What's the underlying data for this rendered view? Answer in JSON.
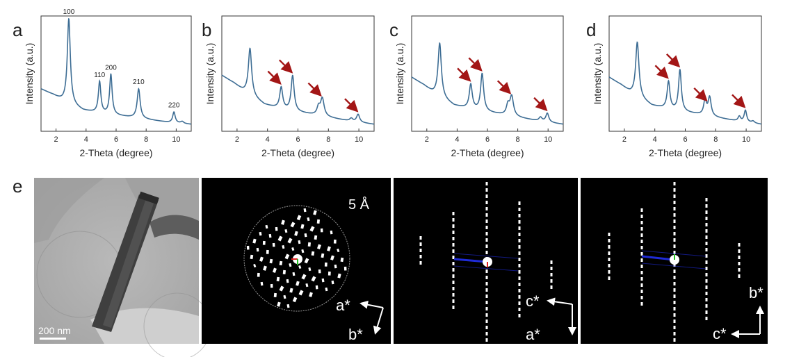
{
  "panel_labels": {
    "a": "a",
    "b": "b",
    "c": "c",
    "d": "d",
    "e": "e"
  },
  "chart_data": [
    {
      "type": "line",
      "panel": "a",
      "xlabel": "2-Theta (degree)",
      "ylabel": "Intensity (a.u.)",
      "xlim": [
        1,
        11
      ],
      "x_ticks": [
        "2",
        "4",
        "6",
        "8",
        "10"
      ],
      "line_color": "#3d6d94",
      "baseline": [
        [
          1,
          0.36
        ],
        [
          1.8,
          0.3
        ],
        [
          2.4,
          0.24
        ],
        [
          3.8,
          0.14
        ],
        [
          5,
          0.11
        ],
        [
          6.5,
          0.08
        ],
        [
          8,
          0.05
        ],
        [
          9.5,
          0.02
        ],
        [
          11,
          0.0
        ]
      ],
      "peaks": [
        {
          "x": 2.85,
          "h": 0.87,
          "w": 0.12,
          "label": "100"
        },
        {
          "x": 4.9,
          "h": 0.32,
          "w": 0.1,
          "label": "110"
        },
        {
          "x": 5.65,
          "h": 0.41,
          "w": 0.1,
          "label": "200"
        },
        {
          "x": 7.5,
          "h": 0.3,
          "w": 0.12,
          "label": "210"
        },
        {
          "x": 9.85,
          "h": 0.11,
          "w": 0.1,
          "label": "220"
        },
        {
          "x": 10.4,
          "h": 0.02,
          "w": 0.12
        }
      ],
      "arrows_at": []
    },
    {
      "type": "line",
      "panel": "b",
      "xlabel": "2-Theta (degree)",
      "ylabel": "Intensity (a.u.)",
      "xlim": [
        1,
        11
      ],
      "x_ticks": [
        "2",
        "4",
        "6",
        "8",
        "10"
      ],
      "line_color": "#3d6d94",
      "baseline": [
        [
          1,
          0.5
        ],
        [
          1.8,
          0.42
        ],
        [
          2.4,
          0.34
        ],
        [
          3.8,
          0.2
        ],
        [
          5,
          0.15
        ],
        [
          6.5,
          0.11
        ],
        [
          8,
          0.07
        ],
        [
          9.5,
          0.03
        ],
        [
          11,
          0.0
        ]
      ],
      "peaks": [
        {
          "x": 2.85,
          "h": 0.48,
          "w": 0.13
        },
        {
          "x": 4.9,
          "h": 0.22,
          "w": 0.12
        },
        {
          "x": 5.65,
          "h": 0.36,
          "w": 0.12
        },
        {
          "x": 7.35,
          "h": 0.08,
          "w": 0.12
        },
        {
          "x": 7.6,
          "h": 0.18,
          "w": 0.14
        },
        {
          "x": 9.5,
          "h": 0.03,
          "w": 0.12
        },
        {
          "x": 9.95,
          "h": 0.08,
          "w": 0.12
        }
      ],
      "arrows_at": [
        4.9,
        5.65,
        7.55,
        9.95
      ]
    },
    {
      "type": "line",
      "panel": "c",
      "xlabel": "2-Theta (degree)",
      "ylabel": "Intensity (a.u.)",
      "xlim": [
        1,
        11
      ],
      "x_ticks": [
        "2",
        "4",
        "6",
        "8",
        "10"
      ],
      "line_color": "#3d6d94",
      "baseline": [
        [
          1,
          0.48
        ],
        [
          1.8,
          0.4
        ],
        [
          2.4,
          0.32
        ],
        [
          3.8,
          0.19
        ],
        [
          5,
          0.15
        ],
        [
          6.5,
          0.11
        ],
        [
          8,
          0.07
        ],
        [
          9.5,
          0.03
        ],
        [
          11,
          0.0
        ]
      ],
      "peaks": [
        {
          "x": 2.85,
          "h": 0.55,
          "w": 0.13
        },
        {
          "x": 4.9,
          "h": 0.25,
          "w": 0.12
        },
        {
          "x": 5.65,
          "h": 0.38,
          "w": 0.12
        },
        {
          "x": 7.35,
          "h": 0.1,
          "w": 0.12
        },
        {
          "x": 7.6,
          "h": 0.2,
          "w": 0.14
        },
        {
          "x": 9.5,
          "h": 0.04,
          "w": 0.12
        },
        {
          "x": 9.95,
          "h": 0.09,
          "w": 0.12
        }
      ],
      "arrows_at": [
        4.9,
        5.65,
        7.55,
        9.95
      ]
    },
    {
      "type": "line",
      "panel": "d",
      "xlabel": "2-Theta (degree)",
      "ylabel": "Intensity (a.u.)",
      "xlim": [
        1,
        11
      ],
      "x_ticks": [
        "2",
        "4",
        "6",
        "8",
        "10"
      ],
      "line_color": "#3d6d94",
      "baseline": [
        [
          1,
          0.48
        ],
        [
          1.8,
          0.4
        ],
        [
          2.4,
          0.32
        ],
        [
          3.8,
          0.19
        ],
        [
          5,
          0.15
        ],
        [
          6.5,
          0.11
        ],
        [
          8,
          0.07
        ],
        [
          9.5,
          0.03
        ],
        [
          11,
          0.0
        ]
      ],
      "peaks": [
        {
          "x": 2.85,
          "h": 0.56,
          "w": 0.13
        },
        {
          "x": 4.9,
          "h": 0.28,
          "w": 0.11
        },
        {
          "x": 5.65,
          "h": 0.42,
          "w": 0.11
        },
        {
          "x": 7.3,
          "h": 0.15,
          "w": 0.11
        },
        {
          "x": 7.6,
          "h": 0.19,
          "w": 0.12
        },
        {
          "x": 9.55,
          "h": 0.05,
          "w": 0.1
        },
        {
          "x": 9.95,
          "h": 0.12,
          "w": 0.1
        },
        {
          "x": 10.45,
          "h": 0.02,
          "w": 0.12
        }
      ],
      "arrows_at": [
        4.9,
        5.65,
        7.45,
        9.95
      ]
    }
  ],
  "tem_panel": {
    "scale_bar_label": "200 nm"
  },
  "diffraction_panels": [
    {
      "id": "ab-projection",
      "resolution_label": "5 Å",
      "axis_horizontal": "a*",
      "axis_vertical": "b*"
    },
    {
      "id": "ac-projection",
      "axis_horizontal": "c*",
      "axis_vertical": "a*"
    },
    {
      "id": "bc-projection",
      "axis_horizontal": "c*",
      "axis_vertical": "b*"
    }
  ],
  "colors": {
    "xrd_line": "#3d6d94",
    "arrow": "#a31616",
    "axis": "#333333",
    "tilt_line": "#1f2bd8"
  }
}
